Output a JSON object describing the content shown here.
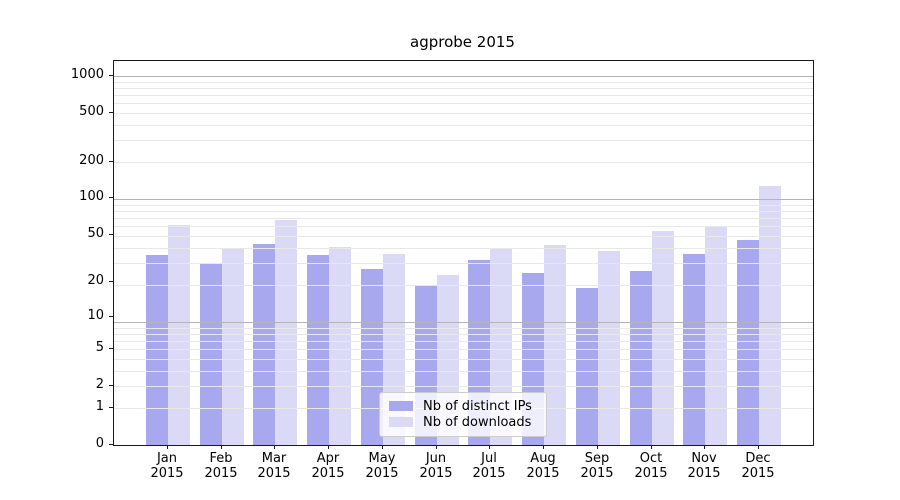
{
  "title": "agprobe 2015",
  "chart_data": {
    "type": "bar",
    "title": "agprobe 2015",
    "categories": [
      "Jan",
      "Feb",
      "Mar",
      "Apr",
      "May",
      "Jun",
      "Jul",
      "Aug",
      "Sep",
      "Oct",
      "Nov",
      "Dec"
    ],
    "year": "2015",
    "series": [
      {
        "name": "Nb of distinct IPs",
        "color": "#a8a8ef",
        "values": [
          34,
          29,
          42,
          34,
          26,
          19,
          31,
          24,
          18,
          25,
          35,
          45
        ]
      },
      {
        "name": "Nb of downloads",
        "color": "#dadaf7",
        "values": [
          60,
          38,
          67,
          40,
          35,
          23,
          38,
          41,
          37,
          54,
          59,
          127
        ]
      }
    ],
    "xlabel": "",
    "ylabel": "",
    "y_scale": "log1p",
    "y_ticks": [
      1000,
      500,
      200,
      100,
      50,
      20,
      10,
      5,
      2,
      1,
      0
    ],
    "ylim": [
      0,
      1320
    ],
    "grid": true,
    "legend_position": "lower-center-inside"
  },
  "colors": {
    "grid_major": "#b4b4b4",
    "grid_minor": "#e8e8e8",
    "spine": "#1a1a1a",
    "background": "#ffffff"
  }
}
